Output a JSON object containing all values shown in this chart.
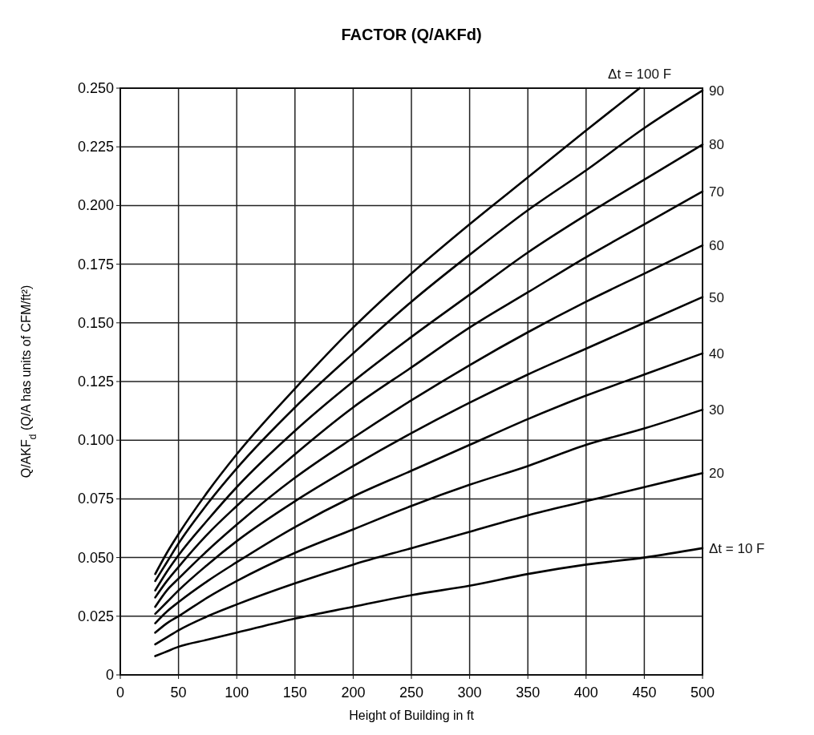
{
  "chart_data": {
    "type": "line",
    "title": "FACTOR (Q/AKFd)",
    "xlabel": "Height of Building in ft",
    "ylabel": "Q/AKF$_{d}$ (Q/A has units of CFM/ft²)",
    "x": [
      30,
      40,
      50,
      75,
      100,
      150,
      200,
      250,
      300,
      350,
      400,
      450,
      500
    ],
    "series": [
      {
        "name": "Δt = 100 F",
        "color": "#000000",
        "x": [
          30,
          40,
          50,
          75,
          100,
          150,
          200,
          250,
          300,
          350,
          400,
          446
        ],
        "values": [
          0.043,
          0.052,
          0.06,
          0.078,
          0.094,
          0.122,
          0.148,
          0.171,
          0.192,
          0.212,
          0.232,
          0.25
        ]
      },
      {
        "name": "90",
        "color": "#000000",
        "values": [
          0.04,
          0.048,
          0.056,
          0.073,
          0.088,
          0.114,
          0.137,
          0.159,
          0.179,
          0.198,
          0.215,
          0.233,
          0.249
        ]
      },
      {
        "name": "80",
        "color": "#000000",
        "values": [
          0.036,
          0.044,
          0.051,
          0.066,
          0.08,
          0.104,
          0.125,
          0.144,
          0.162,
          0.18,
          0.196,
          0.211,
          0.226
        ]
      },
      {
        "name": "70",
        "color": "#000000",
        "values": [
          0.033,
          0.04,
          0.046,
          0.06,
          0.072,
          0.094,
          0.114,
          0.131,
          0.148,
          0.163,
          0.178,
          0.192,
          0.206
        ]
      },
      {
        "name": "60",
        "color": "#000000",
        "values": [
          0.029,
          0.036,
          0.041,
          0.053,
          0.064,
          0.084,
          0.101,
          0.117,
          0.132,
          0.146,
          0.159,
          0.171,
          0.183
        ]
      },
      {
        "name": "50",
        "color": "#000000",
        "values": [
          0.026,
          0.031,
          0.036,
          0.047,
          0.057,
          0.074,
          0.089,
          0.103,
          0.116,
          0.128,
          0.139,
          0.15,
          0.161
        ]
      },
      {
        "name": "40",
        "color": "#000000",
        "values": [
          0.022,
          0.027,
          0.031,
          0.04,
          0.048,
          0.063,
          0.076,
          0.087,
          0.098,
          0.109,
          0.119,
          0.128,
          0.137
        ]
      },
      {
        "name": "30",
        "color": "#000000",
        "values": [
          0.018,
          0.022,
          0.025,
          0.033,
          0.04,
          0.052,
          0.062,
          0.072,
          0.081,
          0.089,
          0.098,
          0.105,
          0.113
        ]
      },
      {
        "name": "20",
        "color": "#000000",
        "values": [
          0.013,
          0.016,
          0.019,
          0.025,
          0.03,
          0.039,
          0.047,
          0.054,
          0.061,
          0.068,
          0.074,
          0.08,
          0.086
        ]
      },
      {
        "name": "Δt = 10 F",
        "color": "#000000",
        "values": [
          0.008,
          0.01,
          0.012,
          0.015,
          0.018,
          0.024,
          0.029,
          0.034,
          0.038,
          0.043,
          0.047,
          0.05,
          0.054
        ]
      }
    ],
    "xlim": [
      0,
      500
    ],
    "xticks": [
      0,
      50,
      100,
      150,
      200,
      250,
      300,
      350,
      400,
      450,
      500
    ],
    "ylim": [
      0,
      0.25
    ],
    "yticks": [
      0,
      0.025,
      {
        "value": 0.05,
        "label": "0.050"
      },
      0.075,
      {
        "value": 0.1,
        "label": "0.100"
      },
      0.125,
      {
        "value": 0.15,
        "label": "0.150"
      },
      0.175,
      {
        "value": 0.2,
        "label": "0.200"
      },
      0.225,
      {
        "value": 0.25,
        "label": "0.250"
      }
    ],
    "grid": true,
    "marker": "none",
    "line_style": "solid"
  }
}
